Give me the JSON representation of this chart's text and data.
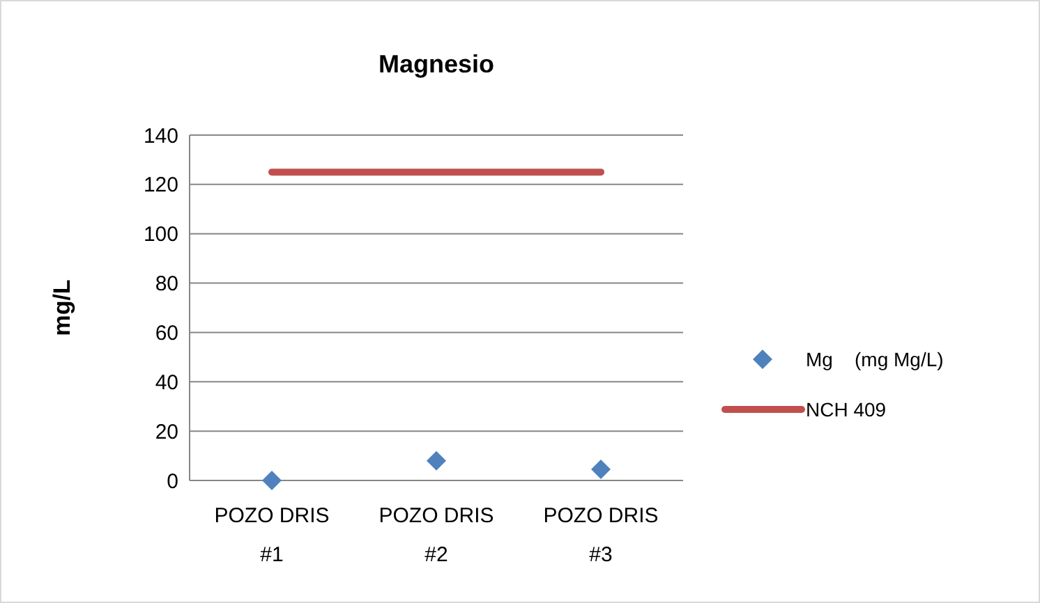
{
  "chart_data": {
    "type": "scatter",
    "title": "Magnesio",
    "ylabel": "mg/L",
    "categories": [
      "POZO DRIS #1",
      "POZO DRIS #2",
      "POZO DRIS #3"
    ],
    "series": [
      {
        "name": "Mg    (mg Mg/L)",
        "color": "#4f81bd",
        "marker": "diamond",
        "values": [
          0,
          8,
          4.5
        ]
      },
      {
        "name": "NCH 409",
        "type": "line",
        "color": "#c0504d",
        "marker": "none",
        "values": [
          125,
          125,
          125
        ]
      }
    ],
    "ylim": [
      0,
      140
    ],
    "yticks": [
      0,
      20,
      40,
      60,
      80,
      100,
      120,
      140
    ],
    "grid": "y",
    "legend": "right"
  }
}
